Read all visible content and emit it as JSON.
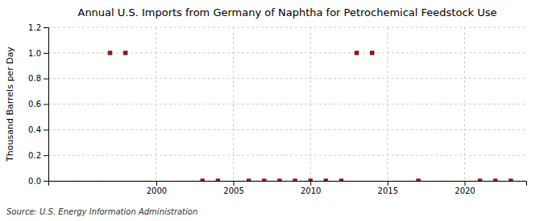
{
  "chart_data": {
    "type": "scatter",
    "title": "Annual U.S. Imports from Germany of Naphtha for Petrochemical Feedstock Use",
    "ylabel": "Thousand Barrels per Day",
    "annotations": [
      "Source: U.S. Energy Information Administration"
    ],
    "x": [
      1997,
      1998,
      2003,
      2004,
      2006,
      2007,
      2008,
      2009,
      2010,
      2011,
      2012,
      2013,
      2014,
      2017,
      2021,
      2022,
      2023
    ],
    "values": [
      1.0,
      1.0,
      0.0,
      0.0,
      0.0,
      0.0,
      0.0,
      0.0,
      0.0,
      0.0,
      0.0,
      1.0,
      1.0,
      0.0,
      0.0,
      0.0,
      0.0
    ],
    "color": "#8b1a1a",
    "marker": "square",
    "xlim": [
      1993,
      2024
    ],
    "xticks": [
      2000,
      2005,
      2010,
      2015,
      2020
    ],
    "ylim": [
      0,
      1.2
    ],
    "yticks": [
      {
        "value": 0.0,
        "label": "0.0"
      },
      0.2,
      0.4,
      0.6,
      0.8,
      {
        "value": 1.0,
        "label": "1.0"
      },
      1.2
    ],
    "grid": true
  }
}
